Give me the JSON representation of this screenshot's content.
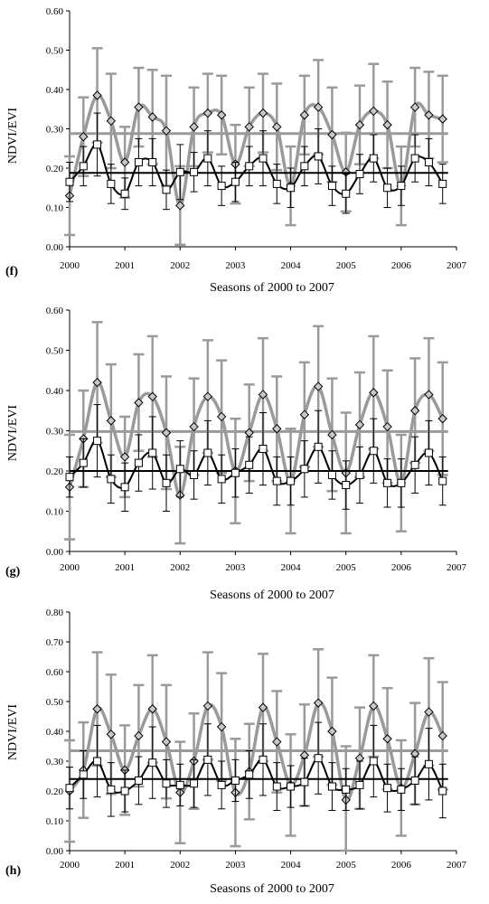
{
  "chart_data": [
    {
      "type": "line",
      "panel_label": "(f)",
      "ylabel": "NDVI/EVI",
      "xlabel": "Seasons of 2000 to 2007",
      "xlim": [
        2000,
        2007
      ],
      "ylim": [
        0,
        0.6
      ],
      "x_ticks": [
        "2000",
        "2001",
        "2002",
        "2003",
        "2004",
        "2005",
        "2006",
        "2007"
      ],
      "y_ticks": [
        "0.00",
        "0.10",
        "0.20",
        "0.30",
        "0.40",
        "0.50",
        "0.60"
      ],
      "series": [
        {
          "marker": "diamond",
          "color": "#9a9a9a",
          "x": [
            2000,
            2000.25,
            2000.5,
            2000.75,
            2001,
            2001.25,
            2001.5,
            2001.75,
            2002,
            2002.25,
            2002.5,
            2002.75,
            2003,
            2003.25,
            2003.5,
            2003.75,
            2004,
            2004.25,
            2004.5,
            2004.75,
            2005,
            2005.25,
            2005.5,
            2005.75,
            2006,
            2006.25,
            2006.5,
            2006.75
          ],
          "y": [
            0.13,
            0.28,
            0.385,
            0.32,
            0.215,
            0.355,
            0.33,
            0.295,
            0.105,
            0.305,
            0.34,
            0.335,
            0.21,
            0.305,
            0.34,
            0.305,
            0.155,
            0.335,
            0.355,
            0.285,
            0.19,
            0.31,
            0.345,
            0.31,
            0.155,
            0.355,
            0.335,
            0.325
          ],
          "error": [
            0.1,
            0.1,
            0.12,
            0.12,
            0.09,
            0.1,
            0.12,
            0.14,
            0.1,
            0.1,
            0.1,
            0.1,
            0.1,
            0.1,
            0.1,
            0.11,
            0.1,
            0.1,
            0.12,
            0.12,
            0.1,
            0.1,
            0.12,
            0.11,
            0.1,
            0.1,
            0.11,
            0.11
          ],
          "mean": 0.288
        },
        {
          "marker": "square",
          "color": "#000000",
          "x": [
            2000,
            2000.25,
            2000.5,
            2000.75,
            2001,
            2001.25,
            2001.5,
            2001.75,
            2002,
            2002.25,
            2002.5,
            2002.75,
            2003,
            2003.25,
            2003.5,
            2003.75,
            2004,
            2004.25,
            2004.5,
            2004.75,
            2005,
            2005.25,
            2005.5,
            2005.75,
            2006,
            2006.25,
            2006.5,
            2006.75
          ],
          "y": [
            0.165,
            0.205,
            0.26,
            0.16,
            0.135,
            0.215,
            0.215,
            0.145,
            0.19,
            0.19,
            0.225,
            0.155,
            0.165,
            0.205,
            0.225,
            0.16,
            0.15,
            0.205,
            0.23,
            0.155,
            0.135,
            0.185,
            0.225,
            0.15,
            0.155,
            0.225,
            0.215,
            0.16
          ],
          "error": [
            0.05,
            0.05,
            0.08,
            0.05,
            0.04,
            0.06,
            0.06,
            0.05,
            0.07,
            0.05,
            0.07,
            0.05,
            0.05,
            0.05,
            0.07,
            0.05,
            0.05,
            0.05,
            0.07,
            0.05,
            0.05,
            0.05,
            0.06,
            0.05,
            0.05,
            0.06,
            0.06,
            0.05
          ],
          "mean": 0.188
        }
      ]
    },
    {
      "type": "line",
      "panel_label": "(g)",
      "ylabel": "NDVI/EVI",
      "xlabel": "Seasons of 2000 to 2007",
      "xlim": [
        2000,
        2007
      ],
      "ylim": [
        0,
        0.6
      ],
      "x_ticks": [
        "2000",
        "2001",
        "2002",
        "2003",
        "2004",
        "2005",
        "2006",
        "2007"
      ],
      "y_ticks": [
        "0.00",
        "0.10",
        "0.20",
        "0.30",
        "0.40",
        "0.50",
        "0.60"
      ],
      "series": [
        {
          "marker": "diamond",
          "color": "#9a9a9a",
          "x": [
            2000,
            2000.25,
            2000.5,
            2000.75,
            2001,
            2001.25,
            2001.5,
            2001.75,
            2002,
            2002.25,
            2002.5,
            2002.75,
            2003,
            2003.25,
            2003.5,
            2003.75,
            2004,
            2004.25,
            2004.5,
            2004.75,
            2005,
            2005.25,
            2005.5,
            2005.75,
            2006,
            2006.25,
            2006.5,
            2006.75
          ],
          "y": [
            0.16,
            0.28,
            0.42,
            0.325,
            0.235,
            0.37,
            0.385,
            0.295,
            0.14,
            0.31,
            0.385,
            0.335,
            0.2,
            0.295,
            0.39,
            0.305,
            0.175,
            0.34,
            0.41,
            0.29,
            0.195,
            0.315,
            0.395,
            0.31,
            0.17,
            0.35,
            0.39,
            0.33
          ],
          "error": [
            0.13,
            0.12,
            0.15,
            0.14,
            0.1,
            0.12,
            0.15,
            0.14,
            0.12,
            0.12,
            0.14,
            0.14,
            0.13,
            0.12,
            0.14,
            0.13,
            0.13,
            0.13,
            0.15,
            0.14,
            0.15,
            0.13,
            0.14,
            0.14,
            0.12,
            0.13,
            0.14,
            0.14
          ],
          "mean": 0.298
        },
        {
          "marker": "square",
          "color": "#000000",
          "x": [
            2000,
            2000.25,
            2000.5,
            2000.75,
            2001,
            2001.25,
            2001.5,
            2001.75,
            2002,
            2002.25,
            2002.5,
            2002.75,
            2003,
            2003.25,
            2003.5,
            2003.75,
            2004,
            2004.25,
            2004.5,
            2004.75,
            2005,
            2005.25,
            2005.5,
            2005.75,
            2006,
            2006.25,
            2006.5,
            2006.75
          ],
          "y": [
            0.185,
            0.22,
            0.275,
            0.18,
            0.16,
            0.22,
            0.245,
            0.17,
            0.205,
            0.19,
            0.245,
            0.18,
            0.195,
            0.215,
            0.255,
            0.175,
            0.175,
            0.205,
            0.26,
            0.19,
            0.165,
            0.19,
            0.25,
            0.17,
            0.17,
            0.215,
            0.245,
            0.175
          ],
          "error": [
            0.05,
            0.06,
            0.09,
            0.06,
            0.06,
            0.07,
            0.09,
            0.07,
            0.07,
            0.06,
            0.08,
            0.06,
            0.06,
            0.07,
            0.09,
            0.06,
            0.06,
            0.07,
            0.09,
            0.06,
            0.06,
            0.07,
            0.08,
            0.06,
            0.06,
            0.07,
            0.08,
            0.06
          ],
          "mean": 0.2
        }
      ]
    },
    {
      "type": "line",
      "panel_label": "(h)",
      "ylabel": "NDVI/EVI",
      "xlabel": "Seasons of 2000 to 2007",
      "xlim": [
        2000,
        2007
      ],
      "ylim": [
        0,
        0.8
      ],
      "x_ticks": [
        "2000",
        "2001",
        "2002",
        "2003",
        "2004",
        "2005",
        "2006",
        "2007"
      ],
      "y_ticks": [
        "0.00",
        "0.10",
        "0.20",
        "0.30",
        "0.40",
        "0.50",
        "0.60",
        "0.70",
        "0.80"
      ],
      "series": [
        {
          "marker": "diamond",
          "color": "#9a9a9a",
          "x": [
            2000,
            2000.25,
            2000.5,
            2000.75,
            2001,
            2001.25,
            2001.5,
            2001.75,
            2002,
            2002.25,
            2002.5,
            2002.75,
            2003,
            2003.25,
            2003.5,
            2003.75,
            2004,
            2004.25,
            2004.5,
            2004.75,
            2005,
            2005.25,
            2005.5,
            2005.75,
            2006,
            2006.25,
            2006.5,
            2006.75
          ],
          "y": [
            0.2,
            0.27,
            0.475,
            0.39,
            0.27,
            0.385,
            0.475,
            0.365,
            0.195,
            0.3,
            0.485,
            0.415,
            0.195,
            0.265,
            0.48,
            0.365,
            0.22,
            0.32,
            0.495,
            0.4,
            0.17,
            0.31,
            0.485,
            0.375,
            0.21,
            0.325,
            0.465,
            0.385
          ],
          "error": [
            0.17,
            0.16,
            0.19,
            0.2,
            0.15,
            0.17,
            0.18,
            0.19,
            0.17,
            0.16,
            0.18,
            0.18,
            0.18,
            0.16,
            0.18,
            0.17,
            0.17,
            0.17,
            0.18,
            0.18,
            0.18,
            0.17,
            0.17,
            0.17,
            0.16,
            0.17,
            0.18,
            0.18
          ],
          "mean": 0.335
        },
        {
          "marker": "square",
          "color": "#000000",
          "x": [
            2000,
            2000.25,
            2000.5,
            2000.75,
            2001,
            2001.25,
            2001.5,
            2001.75,
            2002,
            2002.25,
            2002.5,
            2002.75,
            2003,
            2003.25,
            2003.5,
            2003.75,
            2004,
            2004.25,
            2004.5,
            2004.75,
            2005,
            2005.25,
            2005.5,
            2005.75,
            2006,
            2006.25,
            2006.5,
            2006.75
          ],
          "y": [
            0.21,
            0.255,
            0.3,
            0.205,
            0.2,
            0.235,
            0.295,
            0.225,
            0.22,
            0.225,
            0.305,
            0.22,
            0.235,
            0.255,
            0.305,
            0.215,
            0.215,
            0.23,
            0.31,
            0.215,
            0.205,
            0.22,
            0.3,
            0.21,
            0.205,
            0.235,
            0.29,
            0.2
          ],
          "error": [
            0.07,
            0.08,
            0.12,
            0.09,
            0.07,
            0.08,
            0.12,
            0.08,
            0.07,
            0.08,
            0.12,
            0.08,
            0.07,
            0.08,
            0.12,
            0.08,
            0.07,
            0.08,
            0.12,
            0.08,
            0.07,
            0.08,
            0.12,
            0.08,
            0.07,
            0.08,
            0.12,
            0.09
          ],
          "mean": 0.24
        }
      ]
    }
  ]
}
